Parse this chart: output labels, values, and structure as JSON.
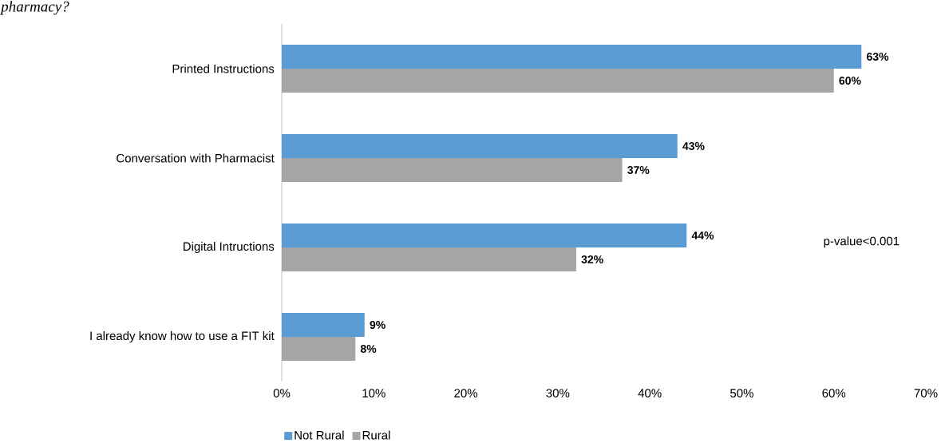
{
  "chart_data": {
    "type": "bar",
    "orientation": "horizontal",
    "title": "pharmacy?",
    "categories": [
      "Printed Instructions",
      "Conversation with Pharmacist",
      "Digital Intructions",
      "I already know how to use a FIT kit"
    ],
    "series": [
      {
        "name": "Not Rural",
        "color": "#5b9bd5",
        "values": [
          63,
          43,
          44,
          9
        ],
        "value_labels": [
          "63%",
          "43%",
          "44%",
          "9%"
        ]
      },
      {
        "name": "Rural",
        "color": "#a5a5a5",
        "values": [
          60,
          37,
          32,
          8
        ],
        "value_labels": [
          "60%",
          "37%",
          "32%",
          "8%"
        ]
      }
    ],
    "xlim": [
      0,
      70
    ],
    "xticks": [
      {
        "value": 0,
        "label": "0%"
      },
      {
        "value": 10,
        "label": "10%"
      },
      {
        "value": 20,
        "label": "20%"
      },
      {
        "value": 30,
        "label": "30%"
      },
      {
        "value": 40,
        "label": "40%"
      },
      {
        "value": 50,
        "label": "50%"
      },
      {
        "value": 60,
        "label": "60%"
      },
      {
        "value": 70,
        "label": "70%"
      }
    ],
    "annotations": [
      "p-value<0.001"
    ],
    "grid": false,
    "legend": "bottom"
  }
}
